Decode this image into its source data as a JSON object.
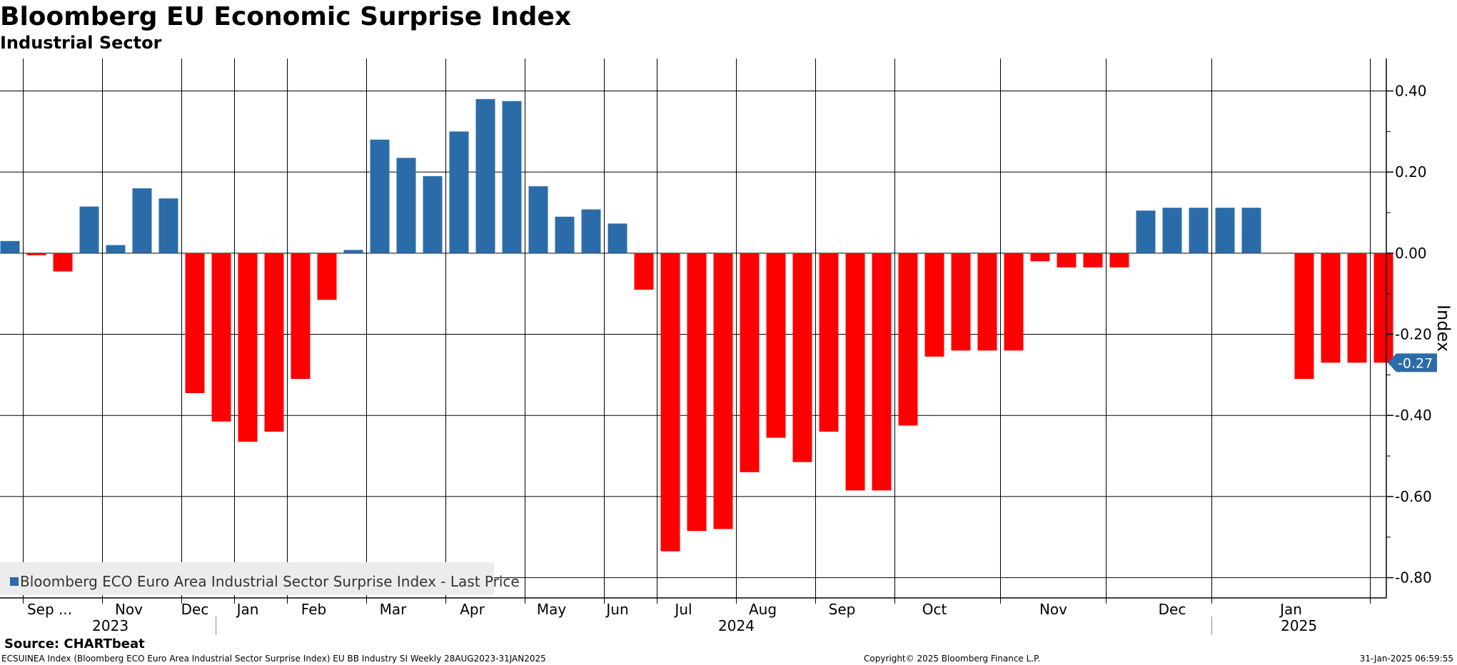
{
  "chart_data": {
    "type": "bar",
    "title": "Bloomberg EU Economic Surprise Index",
    "subtitle": "Industrial Sector",
    "ylabel": "Index",
    "ylim": [
      -0.85,
      0.48
    ],
    "yticks": [
      0.4,
      0.2,
      0.0,
      -0.2,
      -0.4,
      -0.6,
      -0.8
    ],
    "ytick_labels": [
      "0.40",
      "0.20",
      "0.00",
      "-0.20",
      "-0.40",
      "-0.60",
      "-0.80"
    ],
    "positive_color": "#2b6ca8",
    "negative_color": "#ff0000",
    "series": [
      {
        "name": "Bloomberg ECO Euro Area Industrial Sector Surprise Index - Last Price",
        "values": [
          0.03,
          -0.005,
          -0.045,
          0.115,
          0.02,
          0.16,
          0.135,
          -0.345,
          -0.415,
          -0.465,
          -0.44,
          -0.31,
          -0.115,
          0.008,
          0.28,
          0.235,
          0.19,
          0.3,
          0.38,
          0.375,
          0.165,
          0.09,
          0.108,
          0.073,
          -0.09,
          -0.735,
          -0.685,
          -0.68,
          -0.54,
          -0.455,
          -0.515,
          -0.44,
          -0.585,
          -0.585,
          -0.425,
          -0.255,
          -0.24,
          -0.24,
          -0.24,
          -0.02,
          -0.035,
          -0.035,
          -0.035,
          0.105,
          0.112,
          0.112,
          0.112,
          0.112,
          null,
          -0.31,
          -0.27,
          -0.27,
          -0.27
        ]
      }
    ],
    "month_labels": [
      {
        "label": "Sep ...",
        "pos": 1.5
      },
      {
        "label": "Nov",
        "pos": 4.5
      },
      {
        "label": "Dec",
        "pos": 7.0
      },
      {
        "label": "Jan",
        "pos": 9.0
      },
      {
        "label": "Feb",
        "pos": 11.5
      },
      {
        "label": "Mar",
        "pos": 14.5
      },
      {
        "label": "Apr",
        "pos": 17.5
      },
      {
        "label": "May",
        "pos": 20.5
      },
      {
        "label": "Jun",
        "pos": 23.0
      },
      {
        "label": "Jul",
        "pos": 25.5
      },
      {
        "label": "Aug",
        "pos": 28.5
      },
      {
        "label": "Sep",
        "pos": 31.5
      },
      {
        "label": "Oct",
        "pos": 35.0
      },
      {
        "label": "Nov",
        "pos": 39.5
      },
      {
        "label": "Dec",
        "pos": 44.0
      },
      {
        "label": "Jan",
        "pos": 48.5
      }
    ],
    "month_boundaries": [
      0.5,
      3.5,
      6.5,
      8.5,
      10.5,
      13.5,
      16.5,
      19.5,
      22.5,
      24.5,
      27.5,
      30.5,
      33.5,
      37.5,
      41.5,
      45.5,
      51.5
    ],
    "year_labels": [
      {
        "label": "2023",
        "pos": 3.8
      },
      {
        "label": "2024",
        "pos": 27.5
      },
      {
        "label": "2025",
        "pos": 48.8
      }
    ],
    "year_boundaries": [
      7.8,
      45.5
    ],
    "last_value_label": "-0.27",
    "last_value": -0.27
  },
  "footer": {
    "source": "Source: CHARTbeat",
    "ticker_info": "ECSUINEA Index (Bloomberg ECO Euro Area Industrial Sector Surprise Index) EU BB Industry SI  Weekly 28AUG2023-31JAN2025",
    "copyright": "Copyright© 2025 Bloomberg Finance L.P.",
    "timestamp": "31-Jan-2025 06:59:55"
  }
}
